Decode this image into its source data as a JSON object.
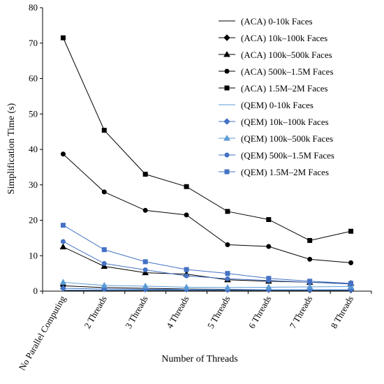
{
  "chart_data": {
    "type": "line",
    "xlabel": "Number of Threads",
    "ylabel": "Simplification Time (s)",
    "ylim": [
      0,
      80
    ],
    "yticks": [
      0,
      10,
      20,
      30,
      40,
      50,
      60,
      70,
      80
    ],
    "grid": false,
    "legend_position": "top-right",
    "categories": [
      "No Parallel Computing",
      "2 Threads",
      "3 Threads",
      "4 Threads",
      "5 Threads",
      "6 Threads",
      "7 Threads",
      "8 Threads"
    ],
    "series": [
      {
        "name": "(ACA) 0-10k Faces",
        "color": "#000000",
        "marker": "none",
        "values": [
          0.2,
          0.2,
          0.2,
          0.2,
          0.2,
          0.2,
          0.2,
          0.2
        ]
      },
      {
        "name": "(ACA) 10k–100k Faces",
        "color": "#000000",
        "marker": "diamond",
        "values": [
          1.5,
          1.0,
          0.8,
          0.6,
          0.5,
          0.4,
          0.3,
          0.3
        ]
      },
      {
        "name": "(ACA) 100k–500k Faces",
        "color": "#000000",
        "marker": "triangle",
        "values": [
          12.5,
          7.0,
          5.2,
          4.8,
          3.2,
          2.8,
          2.5,
          2.2
        ]
      },
      {
        "name": "(ACA) 500k–1.5M Faces",
        "color": "#000000",
        "marker": "circle",
        "values": [
          38.7,
          28.0,
          22.8,
          21.5,
          13.1,
          12.6,
          9.0,
          8.0
        ]
      },
      {
        "name": "(ACA) 1.5M–2M Faces",
        "color": "#000000",
        "marker": "square",
        "values": [
          71.5,
          45.4,
          33.0,
          29.5,
          22.5,
          20.2,
          14.3,
          16.9
        ]
      },
      {
        "name": "(QEM) 0-10k Faces",
        "color": "#5b9bd5",
        "marker": "none",
        "values": [
          0.3,
          0.3,
          0.3,
          0.3,
          0.3,
          0.3,
          0.3,
          0.3
        ]
      },
      {
        "name": "(QEM) 10k–100k Faces",
        "color": "#4472c4",
        "marker": "diamond",
        "values": [
          0.8,
          0.6,
          0.5,
          0.5,
          0.4,
          0.4,
          0.4,
          0.4
        ]
      },
      {
        "name": "(QEM) 100k–500k Faces",
        "color": "#5b9bd5",
        "marker": "triangle",
        "values": [
          2.5,
          1.6,
          1.4,
          1.1,
          1.0,
          1.1,
          1.2,
          1.3
        ]
      },
      {
        "name": "(QEM) 500k–1.5M Faces",
        "color": "#4472c4",
        "marker": "circle",
        "values": [
          14.0,
          7.8,
          6.0,
          4.3,
          3.5,
          3.0,
          2.5,
          2.0
        ]
      },
      {
        "name": "(QEM) 1.5M–2M Faces",
        "color": "#4472c4",
        "marker": "square",
        "values": [
          18.6,
          11.7,
          8.3,
          6.1,
          5.0,
          3.6,
          2.8,
          2.2
        ]
      }
    ]
  }
}
